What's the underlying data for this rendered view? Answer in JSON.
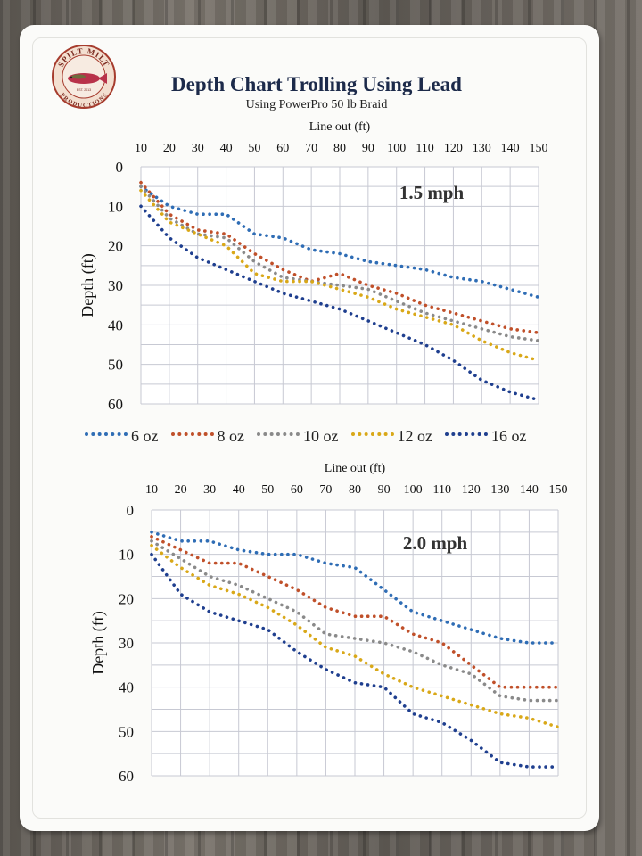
{
  "header": {
    "title": "Depth Chart Trolling Using Lead",
    "subtitle": "Using PowerPro 50 lb Braid"
  },
  "logo": {
    "top_text": "SPILT MILT",
    "bottom_text": "PRODUCTIONS",
    "small_text": "EST. 2013"
  },
  "legend": [
    {
      "name": "6 oz",
      "color": "#2f6db5"
    },
    {
      "name": "8 oz",
      "color": "#c0502a"
    },
    {
      "name": "10 oz",
      "color": "#8a8a8a"
    },
    {
      "name": "12 oz",
      "color": "#d9a818"
    },
    {
      "name": "16 oz",
      "color": "#1f3f8f"
    }
  ],
  "chart_data": [
    {
      "type": "line",
      "annotation": "1.5 mph",
      "xlabel": "Line out (ft)",
      "ylabel": "Depth (ft)",
      "x_ticks": [
        10,
        20,
        30,
        40,
        50,
        60,
        70,
        80,
        90,
        100,
        110,
        120,
        130,
        140,
        150
      ],
      "y_ticks": [
        0,
        10,
        20,
        30,
        40,
        50,
        60
      ],
      "xlim": [
        10,
        150
      ],
      "ylim": [
        0,
        60
      ],
      "y_inverted": true,
      "grid": true,
      "series": [
        {
          "name": "6 oz",
          "x": [
            10,
            20,
            30,
            40,
            50,
            60,
            70,
            80,
            90,
            100,
            110,
            120,
            130,
            140,
            150
          ],
          "y": [
            5,
            10,
            12,
            12,
            17,
            18,
            21,
            22,
            24,
            25,
            26,
            28,
            29,
            31,
            33
          ]
        },
        {
          "name": "8 oz",
          "x": [
            10,
            20,
            30,
            40,
            50,
            60,
            70,
            80,
            90,
            100,
            110,
            120,
            130,
            140,
            150
          ],
          "y": [
            4,
            12,
            16,
            17,
            22,
            26,
            29,
            27,
            30,
            32,
            35,
            37,
            39,
            41,
            42
          ]
        },
        {
          "name": "10 oz",
          "x": [
            10,
            20,
            30,
            40,
            50,
            60,
            70,
            80,
            90,
            100,
            110,
            120,
            130,
            140,
            150
          ],
          "y": [
            5,
            13,
            17,
            18,
            24,
            28,
            29,
            30,
            31,
            34,
            37,
            39,
            41,
            43,
            44
          ]
        },
        {
          "name": "12 oz",
          "x": [
            10,
            20,
            30,
            40,
            50,
            60,
            70,
            80,
            90,
            100,
            110,
            120,
            130,
            140,
            150
          ],
          "y": [
            6,
            14,
            17,
            20,
            27,
            29,
            29,
            31,
            33,
            36,
            38,
            40,
            44,
            47,
            49
          ]
        },
        {
          "name": "16 oz",
          "x": [
            10,
            20,
            30,
            40,
            50,
            60,
            70,
            80,
            90,
            100,
            110,
            120,
            130,
            140,
            150
          ],
          "y": [
            10,
            18,
            23,
            26,
            29,
            32,
            34,
            36,
            39,
            42,
            45,
            49,
            54,
            57,
            59
          ]
        }
      ]
    },
    {
      "type": "line",
      "annotation": "2.0 mph",
      "xlabel": "Line out (ft)",
      "ylabel": "Depth (ft)",
      "x_ticks": [
        10,
        20,
        30,
        40,
        50,
        60,
        70,
        80,
        90,
        100,
        110,
        120,
        130,
        140,
        150
      ],
      "y_ticks": [
        0,
        10,
        20,
        30,
        40,
        50,
        60
      ],
      "xlim": [
        10,
        150
      ],
      "ylim": [
        0,
        60
      ],
      "y_inverted": true,
      "grid": true,
      "series": [
        {
          "name": "6 oz",
          "x": [
            10,
            20,
            30,
            40,
            50,
            60,
            70,
            80,
            90,
            100,
            110,
            120,
            130,
            140,
            150
          ],
          "y": [
            5,
            7,
            7,
            9,
            10,
            10,
            12,
            13,
            18,
            23,
            25,
            27,
            29,
            30,
            30
          ]
        },
        {
          "name": "8 oz",
          "x": [
            10,
            20,
            30,
            40,
            50,
            60,
            70,
            80,
            90,
            100,
            110,
            120,
            130,
            140,
            150
          ],
          "y": [
            6,
            9,
            12,
            12,
            15,
            18,
            22,
            24,
            24,
            28,
            30,
            35,
            40,
            40,
            40
          ]
        },
        {
          "name": "10 oz",
          "x": [
            10,
            20,
            30,
            40,
            50,
            60,
            70,
            80,
            90,
            100,
            110,
            120,
            130,
            140,
            150
          ],
          "y": [
            7,
            11,
            15,
            17,
            20,
            23,
            28,
            29,
            30,
            32,
            35,
            37,
            42,
            43,
            43
          ]
        },
        {
          "name": "12 oz",
          "x": [
            10,
            20,
            30,
            40,
            50,
            60,
            70,
            80,
            90,
            100,
            110,
            120,
            130,
            140,
            150
          ],
          "y": [
            8,
            13,
            17,
            19,
            22,
            26,
            31,
            33,
            37,
            40,
            42,
            44,
            46,
            47,
            49
          ]
        },
        {
          "name": "16 oz",
          "x": [
            10,
            20,
            30,
            40,
            50,
            60,
            70,
            80,
            90,
            100,
            110,
            120,
            130,
            140,
            150
          ],
          "y": [
            10,
            19,
            23,
            25,
            27,
            32,
            36,
            39,
            40,
            46,
            48,
            52,
            57,
            58,
            58
          ]
        }
      ]
    }
  ]
}
